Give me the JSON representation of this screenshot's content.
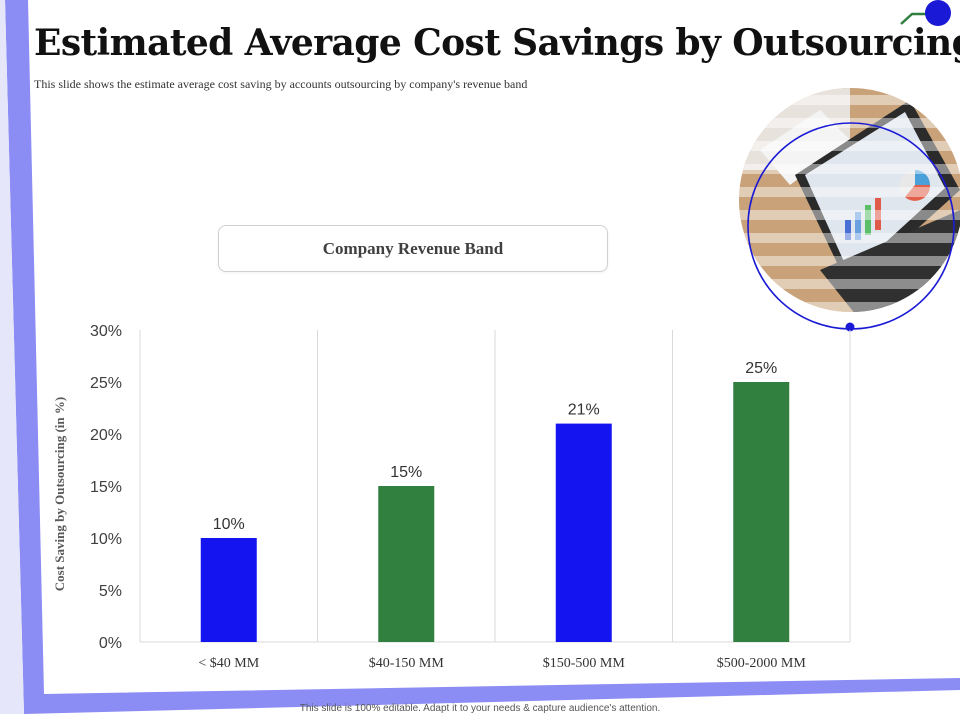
{
  "slide": {
    "title": "Estimated Average Cost Savings by Outsourcing",
    "subtitle": "This slide shows the estimate average cost saving by accounts outsourcing by company's revenue band",
    "footer": "This slide is 100% editable. Adapt it to your needs & capture audience's attention."
  },
  "colors": {
    "blue": "#1414f0",
    "green": "#328040",
    "frame": "#8c8cf5",
    "accent": "#1a1ad6"
  },
  "chart_data": {
    "type": "bar",
    "title": "Company Revenue Band",
    "xlabel": "",
    "ylabel": "Cost Saving by Outsourcing (in %)",
    "categories": [
      "< $40 MM",
      "$40-150 MM",
      "$150-500 MM",
      "$500-2000 MM"
    ],
    "values": [
      10,
      15,
      21,
      25
    ],
    "value_labels": [
      "10%",
      "15%",
      "21%",
      "25%"
    ],
    "bar_colors": [
      "#1414f0",
      "#328040",
      "#1414f0",
      "#328040"
    ],
    "ylim": [
      0,
      30
    ],
    "yticks": [
      0,
      5,
      10,
      15,
      20,
      25,
      30
    ],
    "ytick_labels": [
      "0%",
      "5%",
      "10%",
      "15%",
      "20%",
      "25%",
      "30%"
    ],
    "grid": "vertical"
  },
  "icons": {
    "decor_node": "circle-node-icon",
    "photo": "tablet-photo"
  }
}
